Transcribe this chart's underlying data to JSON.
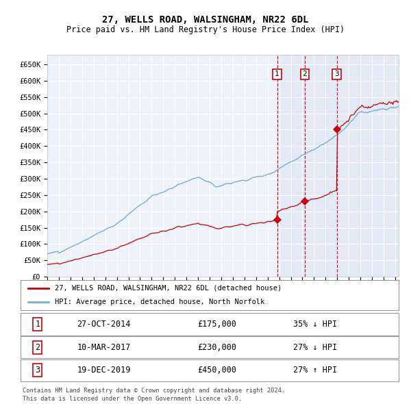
{
  "title": "27, WELLS ROAD, WALSINGHAM, NR22 6DL",
  "subtitle": "Price paid vs. HM Land Registry's House Price Index (HPI)",
  "ylim": [
    0,
    680000
  ],
  "xlim_start": 1995.0,
  "xlim_end": 2025.3,
  "yticks": [
    0,
    50000,
    100000,
    150000,
    200000,
    250000,
    300000,
    350000,
    400000,
    450000,
    500000,
    550000,
    600000,
    650000
  ],
  "ytick_labels": [
    "£0",
    "£50K",
    "£100K",
    "£150K",
    "£200K",
    "£250K",
    "£300K",
    "£350K",
    "£400K",
    "£450K",
    "£500K",
    "£550K",
    "£600K",
    "£650K"
  ],
  "background_color": "#ffffff",
  "plot_bg_color": "#eef2fa",
  "grid_color": "#ffffff",
  "shade_start": 2014.82,
  "transactions": [
    {
      "num": 1,
      "year": 2014.82,
      "price": 175000,
      "label": "27-OCT-2014",
      "amount": "£175,000",
      "hpi_text": "35% ↓ HPI"
    },
    {
      "num": 2,
      "year": 2017.19,
      "price": 230000,
      "label": "10-MAR-2017",
      "amount": "£230,000",
      "hpi_text": "27% ↓ HPI"
    },
    {
      "num": 3,
      "year": 2019.96,
      "price": 450000,
      "label": "19-DEC-2019",
      "amount": "£450,000",
      "hpi_text": "27% ↑ HPI"
    }
  ],
  "legend_line1": "27, WELLS ROAD, WALSINGHAM, NR22 6DL (detached house)",
  "legend_line2": "HPI: Average price, detached house, North Norfolk",
  "footer1": "Contains HM Land Registry data © Crown copyright and database right 2024.",
  "footer2": "This data is licensed under the Open Government Licence v3.0.",
  "red_color": "#cc0000",
  "blue_color": "#7aadd4",
  "shade_color": "#dce6f5"
}
